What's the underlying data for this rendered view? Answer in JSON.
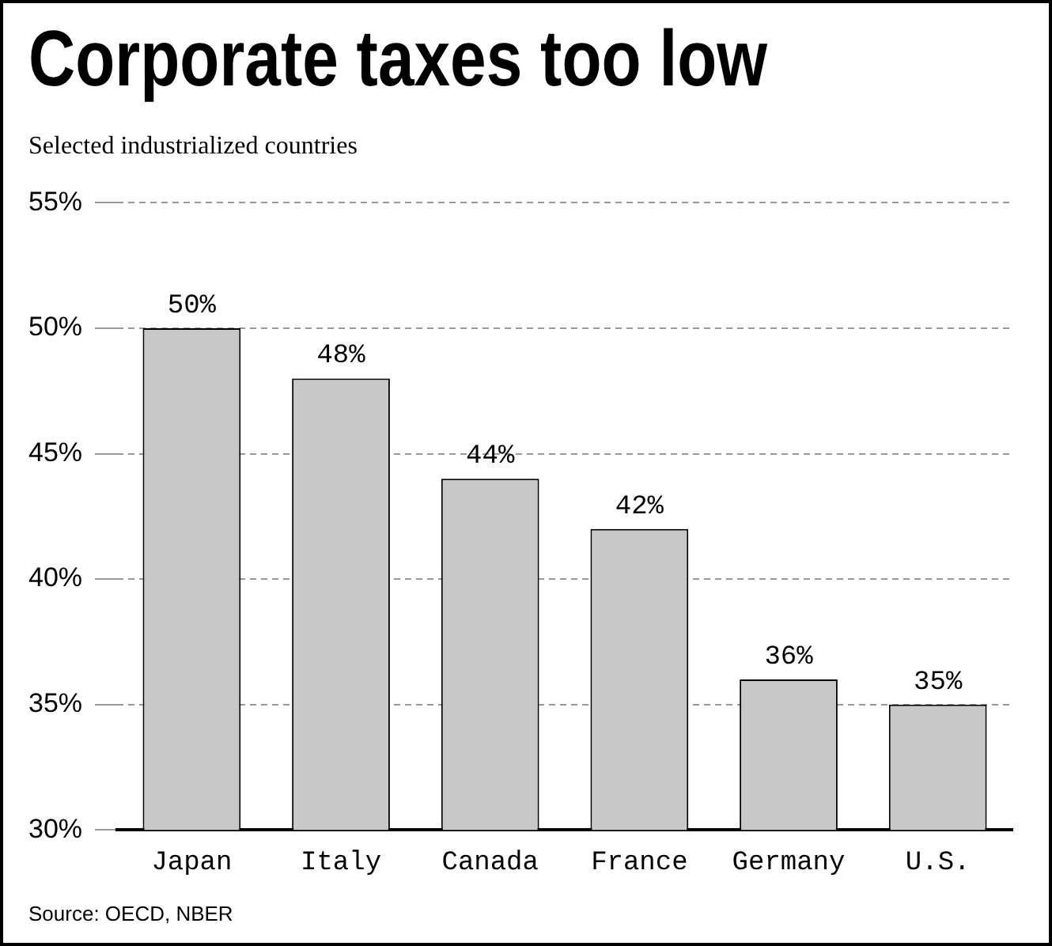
{
  "chart_data": {
    "type": "bar",
    "title": "Corporate taxes too low",
    "subtitle": "Selected industrialized countries",
    "categories": [
      "Japan",
      "Italy",
      "Canada",
      "France",
      "Germany",
      "U.S."
    ],
    "values": [
      50,
      48,
      44,
      42,
      36,
      35
    ],
    "value_labels": [
      "50%",
      "48%",
      "44%",
      "42%",
      "36%",
      "35%"
    ],
    "color": "#c8c8c8",
    "ylim": [
      30,
      55
    ],
    "yticks": [
      {
        "value": 30,
        "label": "30%"
      },
      {
        "value": 35,
        "label": "35%"
      },
      {
        "value": 40,
        "label": "40%"
      },
      {
        "value": 45,
        "label": "45%"
      },
      {
        "value": 50,
        "label": "50%"
      },
      {
        "value": 55,
        "label": "55%"
      }
    ],
    "grid": "y",
    "legend": false,
    "annotations": [
      "Source: OECD, NBER"
    ]
  }
}
